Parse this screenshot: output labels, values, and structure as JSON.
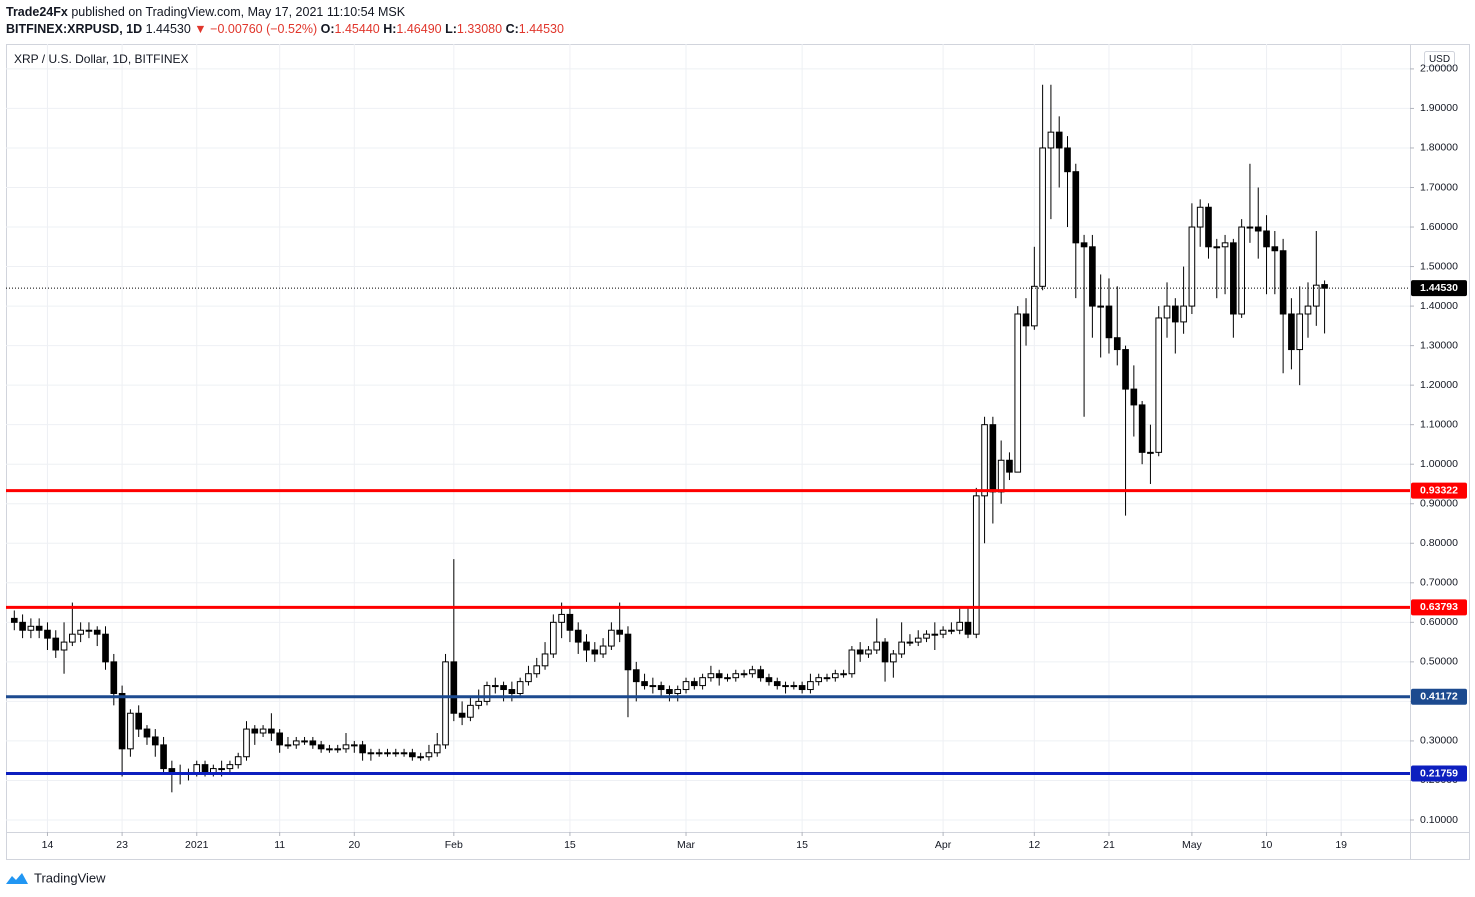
{
  "header": {
    "author": "Trade24Fx",
    "published": "published on TradingView.com, May 17, 2021 11:10:54 MSK",
    "symbol": "BITFINEX:XRPUSD, 1D",
    "price": "1.44530",
    "change": "▼ −0.00760 (−0.52%)",
    "ohlc": [
      {
        "key": "O:",
        "value": "1.45440"
      },
      {
        "key": "H:",
        "value": "1.46490"
      },
      {
        "key": "L:",
        "value": "1.33080"
      },
      {
        "key": "C:",
        "value": "1.44530"
      }
    ]
  },
  "footer": {
    "brand": "TradingView"
  },
  "chart_data": {
    "type": "candlestick",
    "title": "XRP / U.S. Dollar, 1D, BITFINEX",
    "currency": "USD",
    "up_color": "#ffffff",
    "down_color": "#000000",
    "wick_color": "#000000",
    "xlim": [
      -1,
      168.3
    ],
    "xticks": [
      {
        "value": 4,
        "label": "14"
      },
      {
        "value": 13,
        "label": "23"
      },
      {
        "value": 22,
        "label": "2021"
      },
      {
        "value": 32,
        "label": "11"
      },
      {
        "value": 41,
        "label": "20"
      },
      {
        "value": 53,
        "label": "Feb"
      },
      {
        "value": 67,
        "label": "15"
      },
      {
        "value": 81,
        "label": "Mar"
      },
      {
        "value": 95,
        "label": "15"
      },
      {
        "value": 112,
        "label": "Apr"
      },
      {
        "value": 123,
        "label": "12"
      },
      {
        "value": 132,
        "label": "21"
      },
      {
        "value": 142,
        "label": "May"
      },
      {
        "value": 151,
        "label": "10"
      },
      {
        "value": 160,
        "label": "19"
      }
    ],
    "ylim": [
      0.0696,
      2.063
    ],
    "yticks": [
      {
        "value": 0.1,
        "label": "0.10000"
      },
      {
        "value": 0.2,
        "label": "0.20000"
      },
      {
        "value": 0.3,
        "label": "0.30000"
      },
      {
        "value": 0.4,
        "label": "0.40000"
      },
      {
        "value": 0.5,
        "label": "0.50000"
      },
      {
        "value": 0.6,
        "label": "0.60000"
      },
      {
        "value": 0.7,
        "label": "0.70000"
      },
      {
        "value": 0.8,
        "label": "0.80000"
      },
      {
        "value": 0.9,
        "label": "0.90000"
      },
      {
        "value": 1.0,
        "label": "1.00000"
      },
      {
        "value": 1.1,
        "label": "1.10000"
      },
      {
        "value": 1.2,
        "label": "1.20000"
      },
      {
        "value": 1.3,
        "label": "1.30000"
      },
      {
        "value": 1.4,
        "label": "1.40000"
      },
      {
        "value": 1.5,
        "label": "1.50000"
      },
      {
        "value": 1.6,
        "label": "1.60000"
      },
      {
        "value": 1.7,
        "label": "1.70000"
      },
      {
        "value": 1.8,
        "label": "1.80000"
      },
      {
        "value": 1.9,
        "label": "1.90000"
      },
      {
        "value": 2.0,
        "label": "2.00000"
      }
    ],
    "grid": true,
    "levels": [
      {
        "value": 0.93322,
        "color": "#ff0000"
      },
      {
        "value": 0.63793,
        "color": "#ff0000"
      },
      {
        "value": 0.41172,
        "color": "#1c4a8f"
      },
      {
        "value": 0.21759,
        "color": "#0d1fbf"
      }
    ],
    "last_price": {
      "value": 1.4453,
      "label": "1.44530"
    },
    "open": [
      0.61,
      0.6,
      0.58,
      0.59,
      0.58,
      0.56,
      0.53,
      0.55,
      0.57,
      0.58,
      0.58,
      0.57,
      0.5,
      0.42,
      0.28,
      0.37,
      0.33,
      0.31,
      0.29,
      0.23,
      0.22,
      0.22,
      0.22,
      0.24,
      0.22,
      0.23,
      0.23,
      0.24,
      0.26,
      0.33,
      0.32,
      0.33,
      0.32,
      0.29,
      0.29,
      0.3,
      0.3,
      0.29,
      0.28,
      0.28,
      0.28,
      0.29,
      0.29,
      0.27,
      0.27,
      0.27,
      0.27,
      0.27,
      0.27,
      0.26,
      0.26,
      0.27,
      0.29,
      0.5,
      0.37,
      0.36,
      0.39,
      0.4,
      0.44,
      0.44,
      0.43,
      0.42,
      0.45,
      0.47,
      0.49,
      0.52,
      0.6,
      0.62,
      0.58,
      0.55,
      0.53,
      0.52,
      0.54,
      0.58,
      0.57,
      0.48,
      0.45,
      0.44,
      0.44,
      0.43,
      0.42,
      0.43,
      0.45,
      0.44,
      0.46,
      0.47,
      0.46,
      0.46,
      0.47,
      0.47,
      0.48,
      0.46,
      0.45,
      0.44,
      0.44,
      0.44,
      0.43,
      0.45,
      0.46,
      0.46,
      0.47,
      0.47,
      0.53,
      0.52,
      0.53,
      0.55,
      0.5,
      0.52,
      0.55,
      0.55,
      0.56,
      0.57,
      0.57,
      0.58,
      0.58,
      0.6,
      0.57,
      0.92,
      1.1,
      0.93,
      1.01,
      0.98,
      1.38,
      1.35,
      1.45,
      1.8,
      1.84,
      1.8,
      1.74,
      1.56,
      1.55,
      1.4,
      1.4,
      1.32,
      1.29,
      1.19,
      1.15,
      1.03,
      1.03,
      1.37,
      1.4,
      1.36,
      1.4,
      1.6,
      1.65,
      1.55,
      1.55,
      1.56,
      1.38,
      1.6,
      1.6,
      1.59,
      1.55,
      1.54,
      1.38,
      1.29,
      1.38,
      1.4,
      1.4544
    ],
    "high": [
      0.63,
      0.62,
      0.61,
      0.61,
      0.6,
      0.58,
      0.6,
      0.65,
      0.6,
      0.6,
      0.59,
      0.59,
      0.52,
      0.44,
      0.38,
      0.39,
      0.34,
      0.33,
      0.31,
      0.25,
      0.24,
      0.23,
      0.25,
      0.25,
      0.24,
      0.25,
      0.25,
      0.27,
      0.35,
      0.34,
      0.34,
      0.37,
      0.33,
      0.31,
      0.31,
      0.31,
      0.31,
      0.3,
      0.29,
      0.29,
      0.32,
      0.3,
      0.3,
      0.28,
      0.28,
      0.28,
      0.28,
      0.28,
      0.28,
      0.27,
      0.29,
      0.32,
      0.52,
      0.76,
      0.4,
      0.41,
      0.43,
      0.45,
      0.46,
      0.45,
      0.45,
      0.46,
      0.49,
      0.51,
      0.55,
      0.62,
      0.65,
      0.64,
      0.6,
      0.57,
      0.55,
      0.56,
      0.6,
      0.65,
      0.59,
      0.5,
      0.47,
      0.46,
      0.45,
      0.44,
      0.44,
      0.46,
      0.46,
      0.47,
      0.49,
      0.48,
      0.47,
      0.48,
      0.48,
      0.49,
      0.49,
      0.47,
      0.46,
      0.45,
      0.45,
      0.45,
      0.47,
      0.47,
      0.47,
      0.48,
      0.48,
      0.54,
      0.55,
      0.54,
      0.61,
      0.56,
      0.53,
      0.6,
      0.57,
      0.58,
      0.58,
      0.6,
      0.59,
      0.6,
      0.64,
      0.64,
      0.94,
      1.12,
      1.12,
      1.06,
      1.03,
      1.4,
      1.42,
      1.55,
      1.96,
      1.96,
      1.88,
      1.83,
      1.76,
      1.58,
      1.58,
      1.48,
      1.47,
      1.45,
      1.3,
      1.25,
      1.16,
      1.1,
      1.4,
      1.46,
      1.42,
      1.5,
      1.66,
      1.67,
      1.66,
      1.57,
      1.58,
      1.57,
      1.62,
      1.76,
      1.7,
      1.63,
      1.59,
      1.57,
      1.42,
      1.45,
      1.46,
      1.59,
      1.4649
    ],
    "low": [
      0.58,
      0.56,
      0.56,
      0.56,
      0.53,
      0.51,
      0.47,
      0.54,
      0.55,
      0.56,
      0.54,
      0.48,
      0.39,
      0.21,
      0.26,
      0.31,
      0.29,
      0.26,
      0.22,
      0.17,
      0.19,
      0.2,
      0.21,
      0.21,
      0.21,
      0.21,
      0.22,
      0.23,
      0.25,
      0.29,
      0.31,
      0.3,
      0.27,
      0.28,
      0.28,
      0.29,
      0.28,
      0.27,
      0.27,
      0.27,
      0.27,
      0.27,
      0.25,
      0.25,
      0.26,
      0.26,
      0.26,
      0.26,
      0.25,
      0.25,
      0.25,
      0.26,
      0.28,
      0.35,
      0.34,
      0.35,
      0.38,
      0.39,
      0.42,
      0.4,
      0.4,
      0.41,
      0.44,
      0.46,
      0.48,
      0.51,
      0.56,
      0.55,
      0.52,
      0.5,
      0.5,
      0.51,
      0.53,
      0.55,
      0.36,
      0.4,
      0.43,
      0.42,
      0.41,
      0.4,
      0.4,
      0.42,
      0.43,
      0.43,
      0.45,
      0.44,
      0.45,
      0.45,
      0.46,
      0.46,
      0.45,
      0.44,
      0.43,
      0.42,
      0.43,
      0.42,
      0.42,
      0.44,
      0.45,
      0.45,
      0.46,
      0.46,
      0.5,
      0.51,
      0.52,
      0.45,
      0.46,
      0.51,
      0.54,
      0.54,
      0.55,
      0.53,
      0.56,
      0.57,
      0.57,
      0.56,
      0.56,
      0.8,
      0.85,
      0.9,
      0.96,
      0.98,
      1.3,
      1.34,
      1.44,
      1.62,
      1.7,
      1.6,
      1.42,
      1.12,
      1.32,
      1.27,
      1.28,
      1.25,
      0.87,
      1.07,
      1.0,
      0.95,
      1.02,
      1.32,
      1.28,
      1.33,
      1.38,
      1.55,
      1.52,
      1.42,
      1.43,
      1.32,
      1.37,
      1.56,
      1.52,
      1.43,
      1.43,
      1.23,
      1.24,
      1.2,
      1.32,
      1.35,
      1.3308
    ],
    "close": [
      0.6,
      0.58,
      0.59,
      0.58,
      0.56,
      0.53,
      0.55,
      0.57,
      0.58,
      0.58,
      0.57,
      0.5,
      0.42,
      0.28,
      0.37,
      0.33,
      0.31,
      0.29,
      0.23,
      0.22,
      0.22,
      0.22,
      0.24,
      0.22,
      0.23,
      0.23,
      0.24,
      0.26,
      0.33,
      0.32,
      0.33,
      0.32,
      0.29,
      0.29,
      0.3,
      0.3,
      0.29,
      0.28,
      0.28,
      0.28,
      0.29,
      0.29,
      0.27,
      0.27,
      0.27,
      0.27,
      0.27,
      0.27,
      0.26,
      0.26,
      0.27,
      0.29,
      0.5,
      0.37,
      0.36,
      0.39,
      0.4,
      0.44,
      0.44,
      0.43,
      0.42,
      0.45,
      0.47,
      0.49,
      0.52,
      0.6,
      0.62,
      0.58,
      0.55,
      0.53,
      0.52,
      0.54,
      0.58,
      0.57,
      0.48,
      0.45,
      0.44,
      0.44,
      0.43,
      0.42,
      0.43,
      0.45,
      0.44,
      0.46,
      0.47,
      0.46,
      0.46,
      0.47,
      0.47,
      0.48,
      0.46,
      0.45,
      0.44,
      0.44,
      0.44,
      0.43,
      0.45,
      0.46,
      0.46,
      0.47,
      0.47,
      0.53,
      0.52,
      0.53,
      0.55,
      0.5,
      0.52,
      0.55,
      0.55,
      0.56,
      0.57,
      0.57,
      0.58,
      0.58,
      0.6,
      0.57,
      0.92,
      1.1,
      0.93,
      1.01,
      0.98,
      1.38,
      1.35,
      1.45,
      1.8,
      1.84,
      1.8,
      1.74,
      1.56,
      1.55,
      1.4,
      1.4,
      1.32,
      1.29,
      1.19,
      1.15,
      1.03,
      1.03,
      1.37,
      1.4,
      1.36,
      1.4,
      1.6,
      1.65,
      1.55,
      1.55,
      1.56,
      1.38,
      1.6,
      1.6,
      1.59,
      1.55,
      1.54,
      1.38,
      1.29,
      1.38,
      1.4,
      1.4529,
      1.4453
    ]
  }
}
